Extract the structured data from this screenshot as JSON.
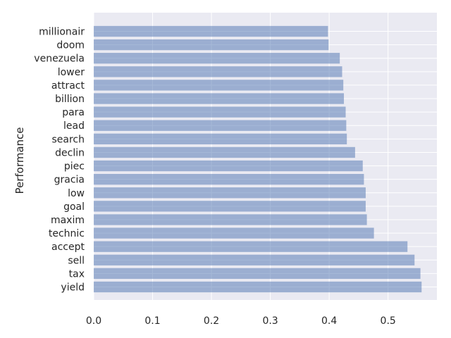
{
  "chart_data": {
    "type": "bar",
    "orientation": "horizontal",
    "title": "",
    "xlabel": "",
    "ylabel": "Performance",
    "categories": [
      "millionair",
      "doom",
      "venezuela",
      "lower",
      "attract",
      "billion",
      "para",
      "lead",
      "search",
      "declin",
      "piec",
      "gracia",
      "low",
      "goal",
      "maxim",
      "technic",
      "accept",
      "sell",
      "tax",
      "yield"
    ],
    "values": [
      0.398,
      0.399,
      0.418,
      0.422,
      0.424,
      0.425,
      0.428,
      0.429,
      0.43,
      0.444,
      0.457,
      0.459,
      0.462,
      0.462,
      0.464,
      0.476,
      0.533,
      0.545,
      0.555,
      0.557
    ],
    "xlim": [
      0,
      0.583
    ],
    "xticks": [
      "0.0",
      "0.1",
      "0.2",
      "0.3",
      "0.4",
      "0.5"
    ],
    "grid": true,
    "bar_color": "#4c72b0",
    "bar_opacity": 0.5,
    "background_color": "#eaeaf2"
  }
}
